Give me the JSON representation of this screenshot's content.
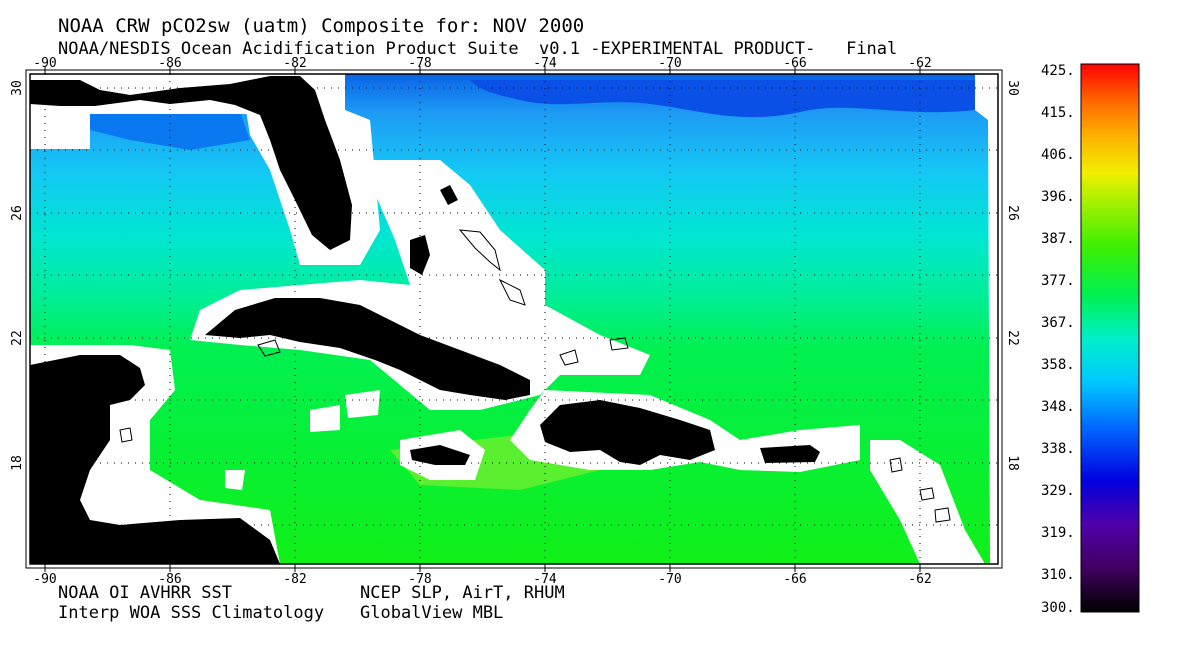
{
  "title": "NOAA CRW pCO2sw (uatm) Composite for: NOV 2000",
  "subtitle": "NOAA/NESDIS Ocean Acidification Product Suite  v0.1 -EXPERIMENTAL PRODUCT-   Final",
  "footer": {
    "left_line1": "NOAA OI AVHRR SST",
    "left_line2": "Interp WOA SSS Climatology",
    "right_line1": "NCEP SLP, AirT, RHUM",
    "right_line2": "GlobalView MBL"
  },
  "map": {
    "lon_ticks": [
      "-90",
      "-86",
      "-82",
      "-78",
      "-74",
      "-70",
      "-66",
      "-62"
    ],
    "lat_ticks": [
      "30",
      "26",
      "22",
      "18"
    ],
    "grid": "dotted",
    "land_color": "#000000",
    "mask_color": "#ffffff"
  },
  "colorbar": {
    "labels": [
      "425.",
      "415.",
      "406.",
      "396.",
      "387.",
      "377.",
      "367.",
      "358.",
      "348.",
      "338.",
      "329.",
      "319.",
      "310.",
      "300."
    ],
    "colors": [
      "#ff0000",
      "#ff6a00",
      "#ffb000",
      "#f0f000",
      "#a8f000",
      "#40f000",
      "#00f040",
      "#00f0c8",
      "#00c8ff",
      "#0070ff",
      "#0000e0",
      "#5000a8",
      "#400060",
      "#000000"
    ]
  }
}
